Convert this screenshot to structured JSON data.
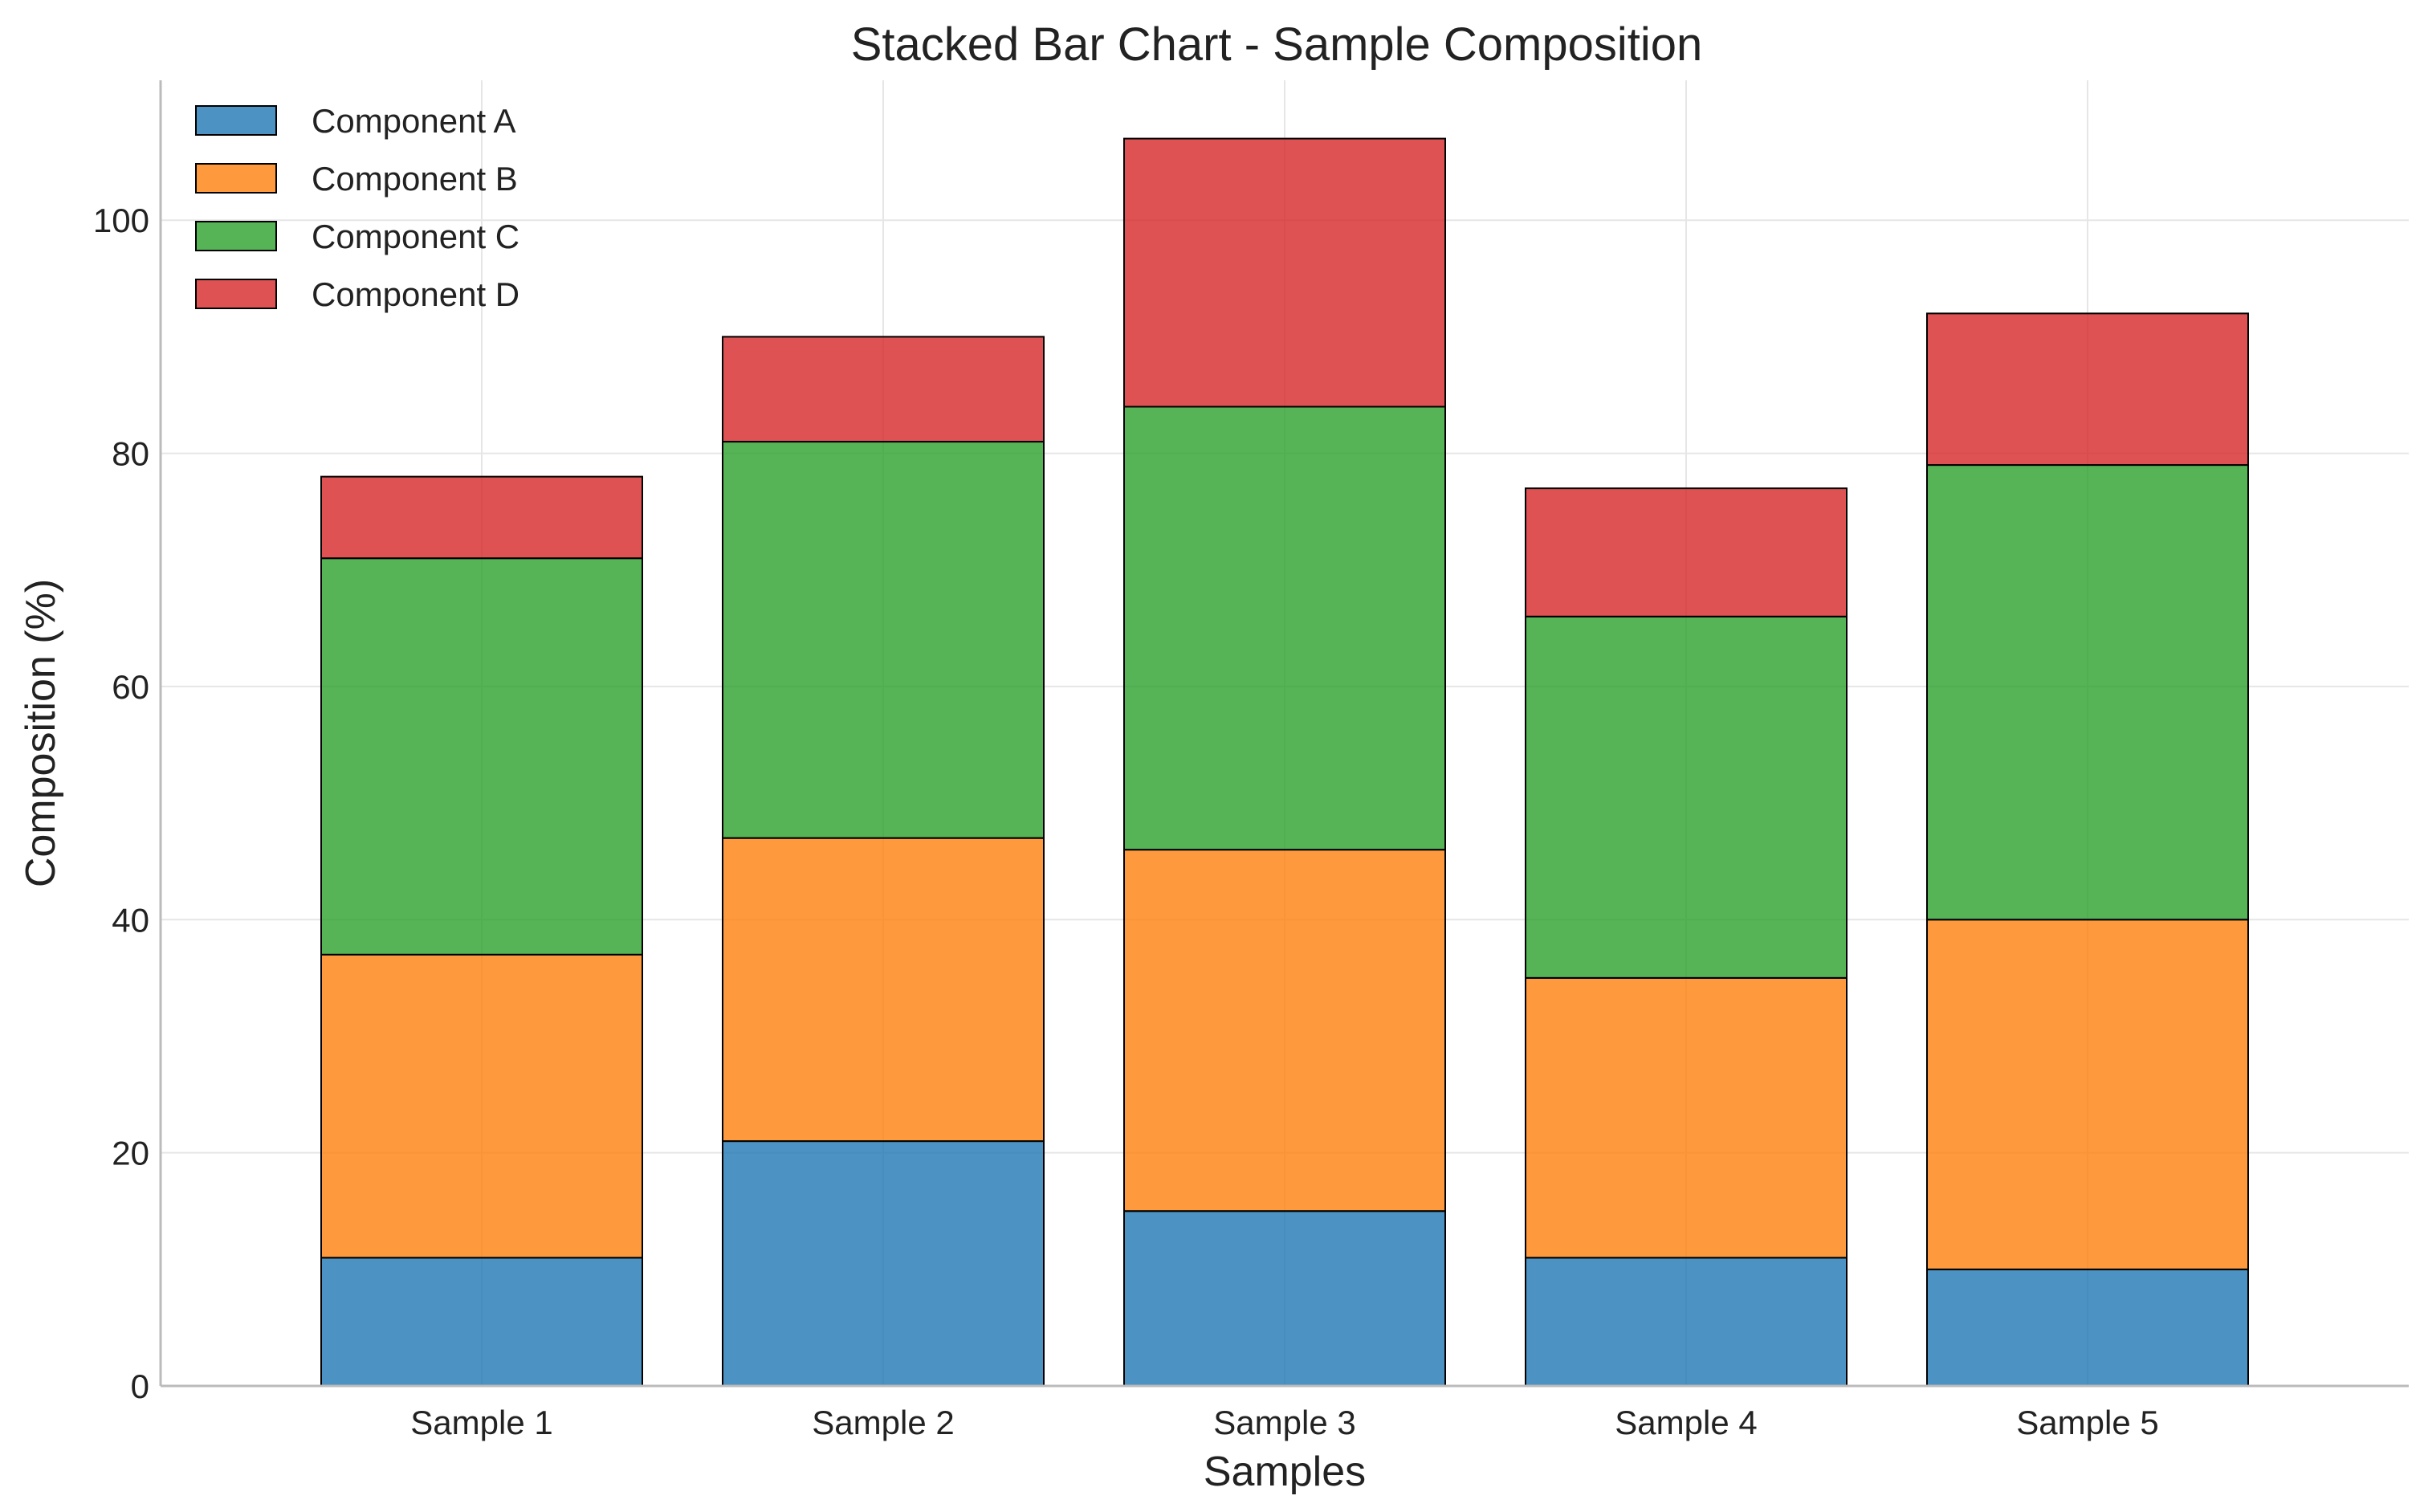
{
  "chart_data": {
    "type": "bar",
    "stacked": true,
    "title": "Stacked Bar Chart - Sample Composition",
    "xlabel": "Samples",
    "ylabel": "Composition (%)",
    "categories": [
      "Sample 1",
      "Sample 2",
      "Sample 3",
      "Sample 4",
      "Sample 5"
    ],
    "ylim": [
      0,
      112
    ],
    "yticks": [
      0,
      20,
      40,
      60,
      80,
      100
    ],
    "grid": true,
    "legend_position": "top-left",
    "series": [
      {
        "name": "Component A",
        "color": "#1f77b4",
        "values": [
          11,
          21,
          15,
          11,
          10
        ]
      },
      {
        "name": "Component B",
        "color": "#ff7f0e",
        "values": [
          26,
          26,
          31,
          24,
          30
        ]
      },
      {
        "name": "Component C",
        "color": "#2ca02c",
        "values": [
          34,
          34,
          38,
          31,
          39
        ]
      },
      {
        "name": "Component D",
        "color": "#d62728",
        "values": [
          7,
          9,
          23,
          11,
          13
        ]
      }
    ]
  }
}
